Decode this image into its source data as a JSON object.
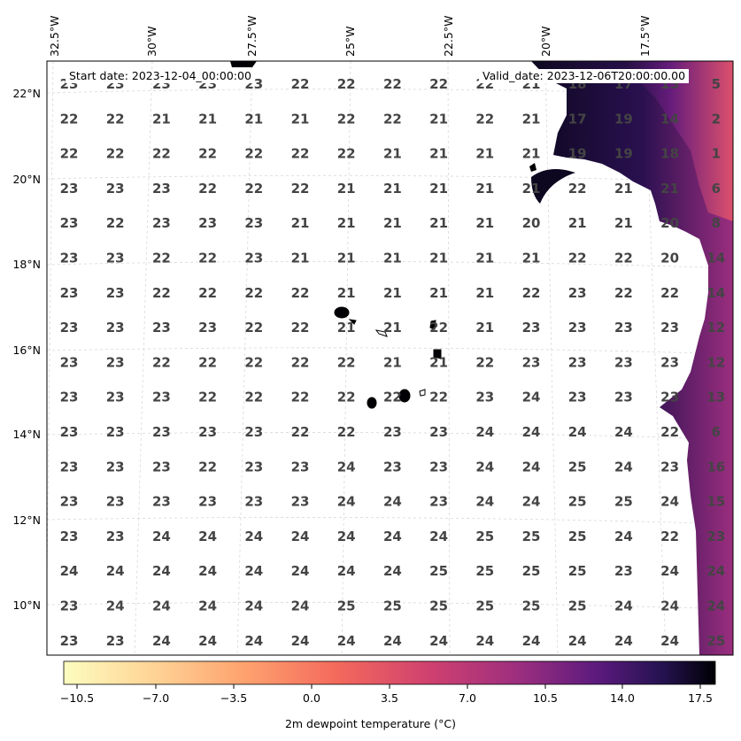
{
  "map": {
    "start_date_text": "Start date: 2023-12-04_00:00:00",
    "valid_date_text": "Valid_date: 2023-12-06T20:00:00.00",
    "lon_labels": [
      "32.5°W",
      "30°W",
      "27.5°W",
      "25°W",
      "22.5°W",
      "20°W",
      "17.5°W"
    ],
    "lat_labels": [
      "22°N",
      "20°N",
      "18°N",
      "16°N",
      "14°N",
      "12°N",
      "10°N"
    ],
    "grid_values": [
      [
        "23",
        "23",
        "23",
        "23",
        "23",
        "22",
        "22",
        "22",
        "22",
        "22",
        "21",
        "18",
        "17",
        "15",
        "5"
      ],
      [
        "22",
        "22",
        "21",
        "21",
        "21",
        "21",
        "22",
        "22",
        "21",
        "22",
        "21",
        "17",
        "19",
        "14",
        "2"
      ],
      [
        "22",
        "22",
        "22",
        "22",
        "22",
        "22",
        "22",
        "21",
        "21",
        "21",
        "21",
        "19",
        "19",
        "18",
        "1"
      ],
      [
        "23",
        "23",
        "23",
        "22",
        "22",
        "22",
        "21",
        "21",
        "21",
        "21",
        "21",
        "22",
        "21",
        "21",
        "6"
      ],
      [
        "23",
        "22",
        "23",
        "23",
        "23",
        "21",
        "21",
        "21",
        "21",
        "21",
        "20",
        "21",
        "21",
        "20",
        "8"
      ],
      [
        "23",
        "23",
        "22",
        "22",
        "23",
        "21",
        "21",
        "21",
        "21",
        "21",
        "21",
        "22",
        "22",
        "20",
        "14"
      ],
      [
        "23",
        "23",
        "22",
        "22",
        "22",
        "22",
        "21",
        "21",
        "21",
        "21",
        "22",
        "23",
        "22",
        "22",
        "14"
      ],
      [
        "23",
        "23",
        "23",
        "23",
        "22",
        "22",
        "21",
        "21",
        "22",
        "21",
        "23",
        "23",
        "23",
        "23",
        "12"
      ],
      [
        "23",
        "23",
        "22",
        "22",
        "22",
        "22",
        "22",
        "21",
        "21",
        "22",
        "23",
        "23",
        "23",
        "23",
        "12"
      ],
      [
        "23",
        "23",
        "23",
        "22",
        "22",
        "22",
        "22",
        "22",
        "22",
        "23",
        "24",
        "23",
        "23",
        "23",
        "13"
      ],
      [
        "23",
        "23",
        "23",
        "23",
        "23",
        "22",
        "22",
        "23",
        "23",
        "24",
        "24",
        "24",
        "24",
        "22",
        "6"
      ],
      [
        "23",
        "23",
        "23",
        "22",
        "23",
        "23",
        "24",
        "23",
        "23",
        "24",
        "24",
        "25",
        "24",
        "23",
        "16"
      ],
      [
        "23",
        "23",
        "23",
        "23",
        "23",
        "23",
        "24",
        "24",
        "23",
        "24",
        "24",
        "25",
        "25",
        "24",
        "15"
      ],
      [
        "23",
        "23",
        "24",
        "24",
        "24",
        "24",
        "24",
        "24",
        "24",
        "25",
        "25",
        "25",
        "24",
        "22",
        "23"
      ],
      [
        "24",
        "24",
        "24",
        "24",
        "24",
        "24",
        "24",
        "24",
        "25",
        "25",
        "25",
        "25",
        "23",
        "24",
        "24"
      ],
      [
        "23",
        "24",
        "24",
        "24",
        "24",
        "24",
        "25",
        "25",
        "25",
        "25",
        "25",
        "25",
        "24",
        "24",
        "24"
      ],
      [
        "23",
        "23",
        "24",
        "24",
        "24",
        "24",
        "24",
        "24",
        "24",
        "24",
        "24",
        "24",
        "24",
        "24",
        "25"
      ]
    ]
  },
  "colorbar": {
    "ticks": [
      "−10.5",
      "−7.0",
      "−3.5",
      "0.0",
      "3.5",
      "7.0",
      "10.5",
      "14.0",
      "17.5"
    ],
    "label": "2m dewpoint temperature ($^\\circ$C)",
    "label_display": "2m dewpoint temperature (°C)",
    "colormap": "magma_r",
    "colors": [
      "#fcfdbf",
      "#febb81",
      "#f8765c",
      "#d3436e",
      "#982d80",
      "#5f187f",
      "#221150",
      "#000004"
    ]
  }
}
